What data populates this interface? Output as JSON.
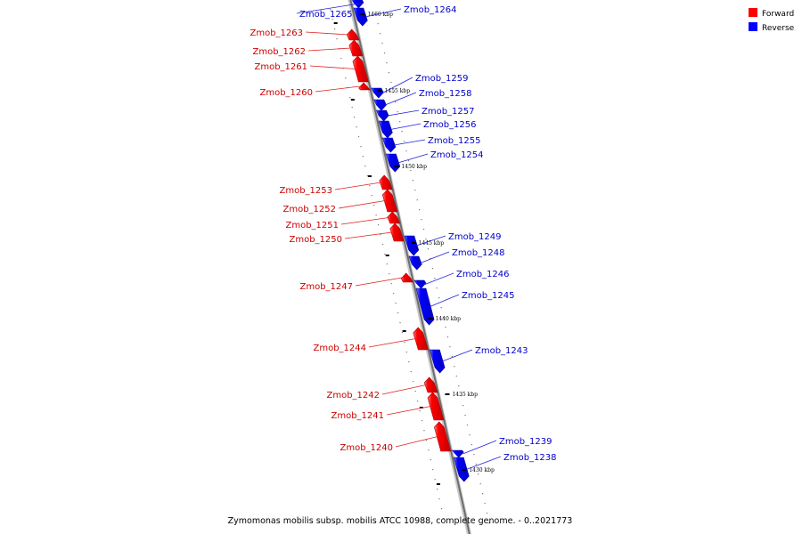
{
  "caption": "Zymomonas mobilis subsp. mobilis ATCC 10988, complete genome. - 0..2021773",
  "legend": [
    {
      "label": "Forward",
      "color": "#ff0000"
    },
    {
      "label": "Reverse",
      "color": "#0000ff"
    }
  ],
  "colors": {
    "forward": "#ff0000",
    "reverse": "#0000ff",
    "forward_label": "#cc0000",
    "reverse_label": "#0000cc"
  },
  "ticks": [
    {
      "kbp": 1460,
      "label": "1460 kbp"
    },
    {
      "kbp": 1455,
      "label": "1455 kbp"
    },
    {
      "kbp": 1450,
      "label": "1450 kbp"
    },
    {
      "kbp": 1445,
      "label": "1445 kbp"
    },
    {
      "kbp": 1440,
      "label": "1440 kbp"
    },
    {
      "kbp": 1435,
      "label": "1435 kbp"
    },
    {
      "kbp": 1430,
      "label": "1430 kbp"
    }
  ],
  "genes": [
    {
      "name": "Zmob_1265",
      "strand": "reverse"
    },
    {
      "name": "Zmob_1264",
      "strand": "reverse"
    },
    {
      "name": "Zmob_1263",
      "strand": "forward"
    },
    {
      "name": "Zmob_1262",
      "strand": "forward"
    },
    {
      "name": "Zmob_1261",
      "strand": "forward"
    },
    {
      "name": "Zmob_1260",
      "strand": "forward"
    },
    {
      "name": "Zmob_1259",
      "strand": "reverse"
    },
    {
      "name": "Zmob_1258",
      "strand": "reverse"
    },
    {
      "name": "Zmob_1257",
      "strand": "reverse"
    },
    {
      "name": "Zmob_1256",
      "strand": "reverse"
    },
    {
      "name": "Zmob_1255",
      "strand": "reverse"
    },
    {
      "name": "Zmob_1254",
      "strand": "reverse"
    },
    {
      "name": "Zmob_1253",
      "strand": "forward"
    },
    {
      "name": "Zmob_1252",
      "strand": "forward"
    },
    {
      "name": "Zmob_1251",
      "strand": "forward"
    },
    {
      "name": "Zmob_1250",
      "strand": "forward"
    },
    {
      "name": "Zmob_1249",
      "strand": "reverse"
    },
    {
      "name": "Zmob_1248",
      "strand": "reverse"
    },
    {
      "name": "Zmob_1247",
      "strand": "forward"
    },
    {
      "name": "Zmob_1246",
      "strand": "reverse"
    },
    {
      "name": "Zmob_1245",
      "strand": "reverse"
    },
    {
      "name": "Zmob_1244",
      "strand": "forward"
    },
    {
      "name": "Zmob_1243",
      "strand": "reverse"
    },
    {
      "name": "Zmob_1242",
      "strand": "forward"
    },
    {
      "name": "Zmob_1241",
      "strand": "forward"
    },
    {
      "name": "Zmob_1240",
      "strand": "forward"
    },
    {
      "name": "Zmob_1239",
      "strand": "reverse"
    },
    {
      "name": "Zmob_1238",
      "strand": "reverse"
    }
  ]
}
